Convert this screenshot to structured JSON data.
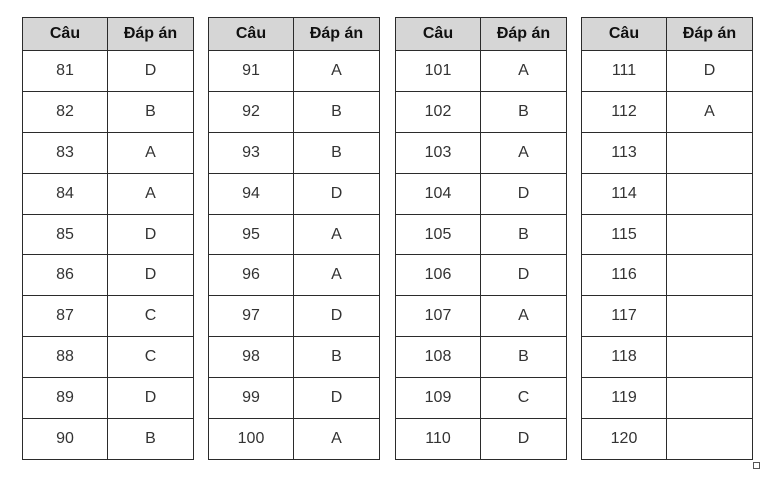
{
  "headers": {
    "question": "Câu",
    "answer": "Đáp án"
  },
  "tables": [
    {
      "rows": [
        {
          "q": "81",
          "a": "D"
        },
        {
          "q": "82",
          "a": "B"
        },
        {
          "q": "83",
          "a": "A"
        },
        {
          "q": "84",
          "a": "A"
        },
        {
          "q": "85",
          "a": "D"
        },
        {
          "q": "86",
          "a": "D"
        },
        {
          "q": "87",
          "a": "C"
        },
        {
          "q": "88",
          "a": "C"
        },
        {
          "q": "89",
          "a": "D"
        },
        {
          "q": "90",
          "a": "B"
        }
      ]
    },
    {
      "rows": [
        {
          "q": "91",
          "a": "A"
        },
        {
          "q": "92",
          "a": "B"
        },
        {
          "q": "93",
          "a": "B"
        },
        {
          "q": "94",
          "a": "D"
        },
        {
          "q": "95",
          "a": "A"
        },
        {
          "q": "96",
          "a": "A"
        },
        {
          "q": "97",
          "a": "D"
        },
        {
          "q": "98",
          "a": "B"
        },
        {
          "q": "99",
          "a": "D"
        },
        {
          "q": "100",
          "a": "A"
        }
      ]
    },
    {
      "rows": [
        {
          "q": "101",
          "a": "A"
        },
        {
          "q": "102",
          "a": "B"
        },
        {
          "q": "103",
          "a": "A"
        },
        {
          "q": "104",
          "a": "D"
        },
        {
          "q": "105",
          "a": "B"
        },
        {
          "q": "106",
          "a": "D"
        },
        {
          "q": "107",
          "a": "A"
        },
        {
          "q": "108",
          "a": "B"
        },
        {
          "q": "109",
          "a": "C"
        },
        {
          "q": "110",
          "a": "D"
        }
      ]
    },
    {
      "rows": [
        {
          "q": "111",
          "a": "D"
        },
        {
          "q": "112",
          "a": "A"
        },
        {
          "q": "113",
          "a": ""
        },
        {
          "q": "114",
          "a": ""
        },
        {
          "q": "115",
          "a": ""
        },
        {
          "q": "116",
          "a": ""
        },
        {
          "q": "117",
          "a": ""
        },
        {
          "q": "118",
          "a": ""
        },
        {
          "q": "119",
          "a": ""
        },
        {
          "q": "120",
          "a": ""
        }
      ]
    }
  ]
}
